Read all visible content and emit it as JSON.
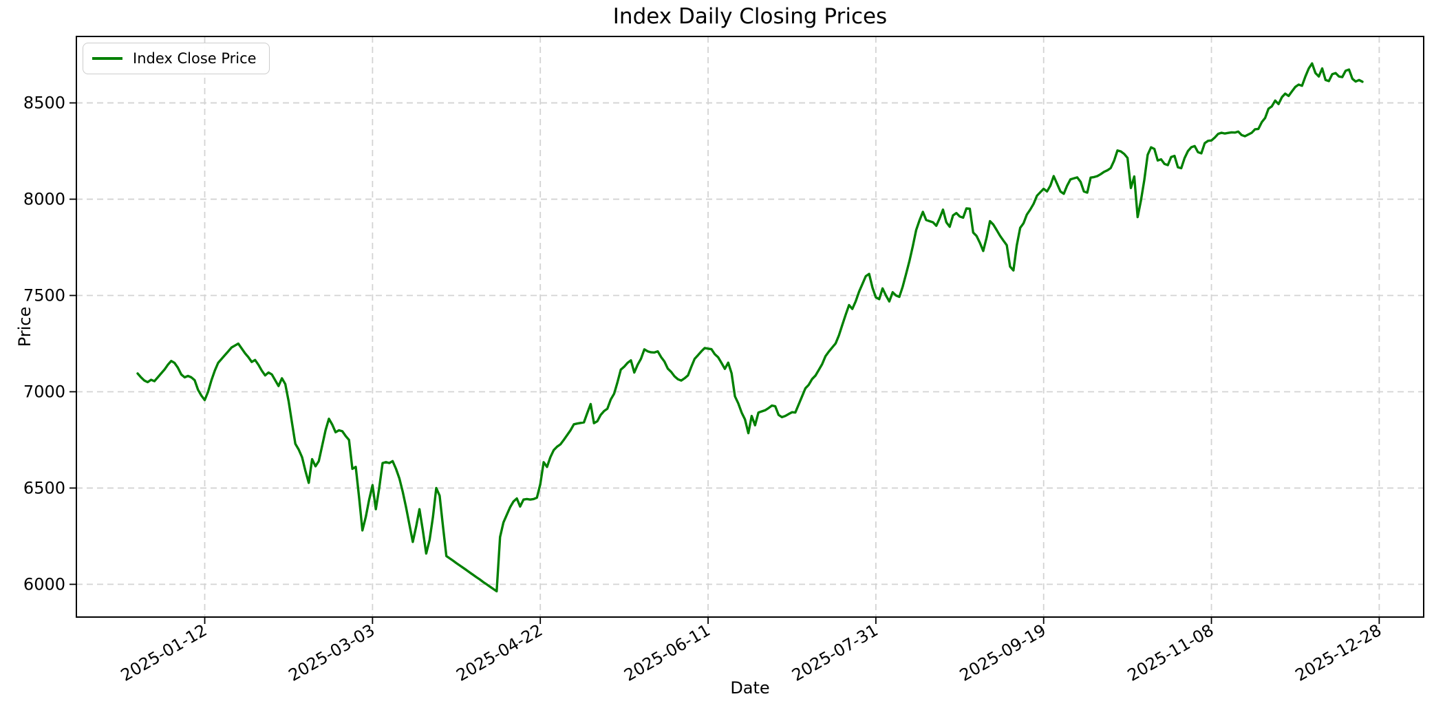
{
  "chart_data": {
    "type": "line",
    "title": "Index Daily Closing Prices",
    "xlabel": "Date",
    "ylabel": "Price",
    "grid": true,
    "legend_position": "upper left",
    "colors": {
      "line": "#008000",
      "grid": "#d3d3d3",
      "frame": "#000000",
      "legend_border": "#cccccc"
    },
    "xticks": [
      "2025-01-12",
      "2025-03-03",
      "2025-04-22",
      "2025-06-11",
      "2025-07-31",
      "2025-09-19",
      "2025-11-08",
      "2025-12-28"
    ],
    "yticks": [
      6000,
      6500,
      7000,
      7500,
      8000,
      8500
    ],
    "ylim": [
      5830,
      8845
    ],
    "series": [
      {
        "name": "Index Close Price",
        "color": "#008000",
        "start_date": "2024-12-23",
        "frequency": "daily",
        "values": [
          7095,
          7075,
          7058,
          7050,
          7062,
          7055,
          7075,
          7095,
          7115,
          7140,
          7160,
          7150,
          7125,
          7090,
          7075,
          7082,
          7075,
          7060,
          7010,
          6980,
          6957,
          7000,
          7060,
          7110,
          7150,
          7170,
          7190,
          7210,
          7230,
          7240,
          7250,
          7225,
          7200,
          7180,
          7155,
          7165,
          7140,
          7110,
          7085,
          7100,
          7090,
          7060,
          7030,
          7070,
          7040,
          6950,
          6840,
          6730,
          6700,
          6660,
          6590,
          6527,
          6650,
          6613,
          6640,
          6720,
          6800,
          6860,
          6830,
          6790,
          6800,
          6795,
          6770,
          6750,
          6600,
          6610,
          6450,
          6280,
          6350,
          6440,
          6515,
          6390,
          6500,
          6630,
          6635,
          6630,
          6640,
          6600,
          6550,
          6480,
          6400,
          6310,
          6220,
          6300,
          6390,
          6280,
          6160,
          6230,
          6350,
          6500,
          6460,
          6300,
          6147,
          6135,
          6123,
          6110,
          6098,
          6086,
          6074,
          6061,
          6049,
          6037,
          6025,
          6012,
          6000,
          5988,
          5976,
          5964,
          6245,
          6321,
          6360,
          6400,
          6430,
          6446,
          6404,
          6440,
          6443,
          6440,
          6443,
          6450,
          6520,
          6634,
          6610,
          6660,
          6697,
          6715,
          6727,
          6750,
          6775,
          6800,
          6831,
          6835,
          6838,
          6841,
          6890,
          6936,
          6837,
          6847,
          6880,
          6900,
          6912,
          6960,
          6990,
          7050,
          7115,
          7130,
          7150,
          7163,
          7100,
          7140,
          7171,
          7220,
          7210,
          7205,
          7204,
          7210,
          7180,
          7157,
          7120,
          7103,
          7080,
          7065,
          7058,
          7070,
          7085,
          7130,
          7171,
          7190,
          7210,
          7227,
          7224,
          7221,
          7195,
          7179,
          7150,
          7119,
          7151,
          7096,
          6976,
          6940,
          6892,
          6856,
          6785,
          6874,
          6826,
          6892,
          6898,
          6904,
          6915,
          6928,
          6925,
          6880,
          6868,
          6874,
          6884,
          6894,
          6892,
          6934,
          6976,
          7018,
          7036,
          7066,
          7084,
          7114,
          7143,
          7185,
          7209,
          7230,
          7251,
          7293,
          7347,
          7400,
          7450,
          7430,
          7470,
          7520,
          7560,
          7600,
          7612,
          7540,
          7490,
          7481,
          7537,
          7500,
          7469,
          7517,
          7500,
          7493,
          7546,
          7612,
          7678,
          7755,
          7839,
          7890,
          7934,
          7892,
          7886,
          7880,
          7862,
          7900,
          7946,
          7880,
          7857,
          7916,
          7928,
          7910,
          7904,
          7952,
          7950,
          7827,
          7809,
          7773,
          7731,
          7800,
          7886,
          7868,
          7840,
          7810,
          7785,
          7761,
          7650,
          7630,
          7761,
          7851,
          7875,
          7920,
          7946,
          7976,
          8018,
          8036,
          8054,
          8040,
          8070,
          8120,
          8080,
          8040,
          8028,
          8070,
          8103,
          8108,
          8113,
          8090,
          8040,
          8034,
          8112,
          8115,
          8120,
          8130,
          8142,
          8150,
          8162,
          8200,
          8253,
          8248,
          8235,
          8214,
          8058,
          8118,
          7907,
          7993,
          8100,
          8231,
          8269,
          8261,
          8201,
          8207,
          8183,
          8177,
          8219,
          8225,
          8166,
          8161,
          8213,
          8250,
          8270,
          8276,
          8244,
          8238,
          8291,
          8303,
          8305,
          8320,
          8339,
          8345,
          8341,
          8344,
          8347,
          8346,
          8351,
          8333,
          8327,
          8336,
          8345,
          8363,
          8365,
          8400,
          8422,
          8470,
          8482,
          8512,
          8494,
          8530,
          8548,
          8536,
          8560,
          8583,
          8595,
          8589,
          8637,
          8679,
          8705,
          8655,
          8637,
          8679,
          8619,
          8613,
          8649,
          8655,
          8637,
          8634,
          8667,
          8673,
          8625,
          8611,
          8619,
          8610
        ]
      }
    ]
  }
}
